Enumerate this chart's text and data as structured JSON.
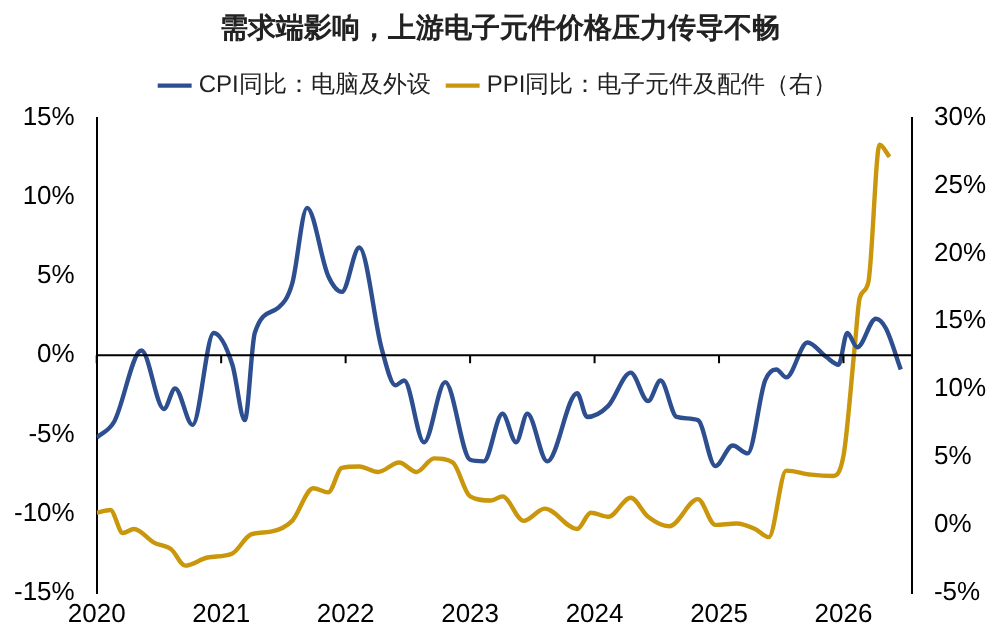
{
  "chart_data": {
    "type": "line",
    "title": "需求端影响，上游电子元件价格压力传导不畅",
    "legend": "top",
    "grid": false,
    "marker": "none",
    "line_style": "solid",
    "xlim": [
      2020,
      2026.55
    ],
    "xticks": [
      2020,
      2021,
      2022,
      2023,
      2024,
      2025,
      2026
    ],
    "ylim": [
      -15,
      15
    ],
    "yticks": [
      {
        "value": -15,
        "label": "-15%"
      },
      {
        "value": -10,
        "label": "-10%"
      },
      {
        "value": -5,
        "label": "-5%"
      },
      {
        "value": 0,
        "label": "0%"
      },
      {
        "value": 5,
        "label": "5%"
      },
      {
        "value": 10,
        "label": "10%"
      },
      {
        "value": 15,
        "label": "15%"
      }
    ],
    "y2lim": [
      -5,
      30
    ],
    "y2ticks": [
      {
        "value": -5,
        "label": "-5%"
      },
      {
        "value": 0,
        "label": "0%"
      },
      {
        "value": 5,
        "label": "5%"
      },
      {
        "value": 10,
        "label": "10%"
      },
      {
        "value": 15,
        "label": "15%"
      },
      {
        "value": 20,
        "label": "20%"
      },
      {
        "value": 25,
        "label": "25%"
      },
      {
        "value": 30,
        "label": "30%"
      }
    ],
    "ref_lines": [
      {
        "axis": "y",
        "value": 0,
        "label": null,
        "color": "#000000"
      }
    ],
    "series": [
      {
        "name": "CPI同比：电脑及外设",
        "color": "#2e4f8f",
        "x": [
          2020.0,
          2020.14,
          2020.36,
          2020.54,
          2020.63,
          2020.77,
          2020.94,
          2021.09,
          2021.19,
          2021.27,
          2021.46,
          2021.57,
          2021.69,
          2021.86,
          2021.97,
          2022.11,
          2022.29,
          2022.4,
          2022.47,
          2022.63,
          2022.8,
          2023.0,
          2023.11,
          2023.26,
          2023.37,
          2023.46,
          2023.62,
          2023.86,
          2023.94,
          2024.11,
          2024.29,
          2024.43,
          2024.53,
          2024.66,
          2024.83,
          2024.97,
          2025.11,
          2025.23,
          2025.37,
          2025.46,
          2025.54,
          2025.71,
          2025.86,
          2025.96,
          2026.03,
          2026.11,
          2026.26,
          2026.34,
          2026.46
        ],
        "values": [
          -5.2,
          -4.2,
          0.3,
          -3.4,
          -2.1,
          -4.4,
          1.4,
          -0.6,
          -4.1,
          1.4,
          3.0,
          4.5,
          9.3,
          5.0,
          4.0,
          6.8,
          0.4,
          -1.9,
          -1.6,
          -5.5,
          -1.7,
          -6.6,
          -6.7,
          -3.7,
          -5.5,
          -3.7,
          -6.7,
          -2.4,
          -3.9,
          -3.2,
          -1.1,
          -2.9,
          -1.6,
          -3.9,
          -4.1,
          -7.0,
          -5.7,
          -6.2,
          -1.6,
          -0.9,
          -1.4,
          0.8,
          -0.1,
          -0.6,
          1.4,
          0.5,
          2.3,
          1.7,
          -0.9
        ]
      },
      {
        "name": "PPI同比：电子元件及配件（右）",
        "color": "#c9960c",
        "axis": "y2",
        "x": [
          2020.0,
          2020.11,
          2020.21,
          2020.3,
          2020.46,
          2020.6,
          2020.71,
          2020.89,
          2021.09,
          2021.24,
          2021.4,
          2021.57,
          2021.74,
          2021.86,
          2021.97,
          2022.11,
          2022.26,
          2022.43,
          2022.57,
          2022.71,
          2022.86,
          2023.0,
          2023.17,
          2023.26,
          2023.43,
          2023.6,
          2023.86,
          2023.97,
          2024.11,
          2024.29,
          2024.43,
          2024.6,
          2024.83,
          2024.97,
          2025.14,
          2025.29,
          2025.4,
          2025.54,
          2025.74,
          2025.91,
          2026.0,
          2026.09,
          2026.13,
          2026.2,
          2026.29,
          2026.37
        ],
        "values": [
          0.9,
          1.1,
          -0.6,
          -0.3,
          -1.3,
          -1.8,
          -3.0,
          -2.4,
          -2.1,
          -0.7,
          -0.5,
          0.3,
          2.7,
          2.4,
          4.2,
          4.3,
          3.9,
          4.6,
          3.9,
          4.9,
          4.6,
          2.1,
          1.8,
          2.1,
          0.3,
          1.2,
          -0.3,
          0.9,
          0.6,
          2.0,
          0.6,
          -0.1,
          1.9,
          0.0,
          0.1,
          -0.3,
          -0.9,
          4.0,
          3.7,
          3.6,
          5.1,
          13.1,
          16.7,
          17.9,
          28.0,
          27.1
        ]
      }
    ]
  }
}
